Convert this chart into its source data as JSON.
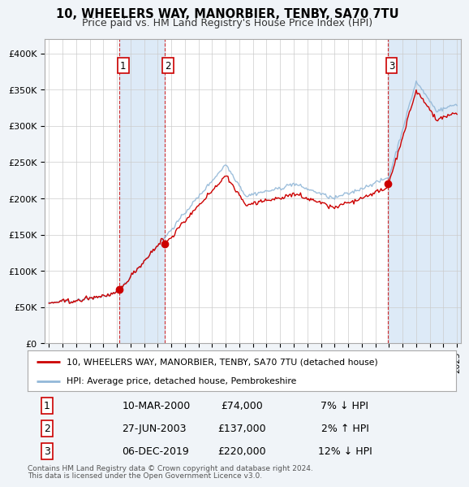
{
  "title": "10, WHEELERS WAY, MANORBIER, TENBY, SA70 7TU",
  "subtitle": "Price paid vs. HM Land Registry's House Price Index (HPI)",
  "ylim": [
    0,
    420000
  ],
  "yticks": [
    0,
    50000,
    100000,
    150000,
    200000,
    250000,
    300000,
    350000,
    400000
  ],
  "ytick_labels": [
    "£0",
    "£50K",
    "£100K",
    "£150K",
    "£200K",
    "£250K",
    "£300K",
    "£350K",
    "£400K"
  ],
  "hpi_color": "#93b8d8",
  "price_color": "#cc0000",
  "shade_color": "#ddeaf7",
  "purchase_years": [
    2000.19,
    2003.49,
    2019.92
  ],
  "purchase_prices": [
    74000,
    137000,
    220000
  ],
  "purchase_labels": [
    "1",
    "2",
    "3"
  ],
  "purchase_label_info": [
    {
      "label": "1",
      "date": "10-MAR-2000",
      "price": "£74,000",
      "hpi_rel": "7% ↓ HPI"
    },
    {
      "label": "2",
      "date": "27-JUN-2003",
      "price": "£137,000",
      "hpi_rel": "2% ↑ HPI"
    },
    {
      "label": "3",
      "date": "06-DEC-2019",
      "price": "£220,000",
      "hpi_rel": "12% ↓ HPI"
    }
  ],
  "legend_house": "10, WHEELERS WAY, MANORBIER, TENBY, SA70 7TU (detached house)",
  "legend_hpi": "HPI: Average price, detached house, Pembrokeshire",
  "footnote1": "Contains HM Land Registry data © Crown copyright and database right 2024.",
  "footnote2": "This data is licensed under the Open Government Licence v3.0.",
  "bg_color": "#f0f4f8",
  "plot_bg": "#ffffff",
  "grid_color": "#cccccc",
  "x_start_year": 1995,
  "x_end_year": 2025,
  "label_nums": [
    "1",
    "2",
    "3"
  ]
}
